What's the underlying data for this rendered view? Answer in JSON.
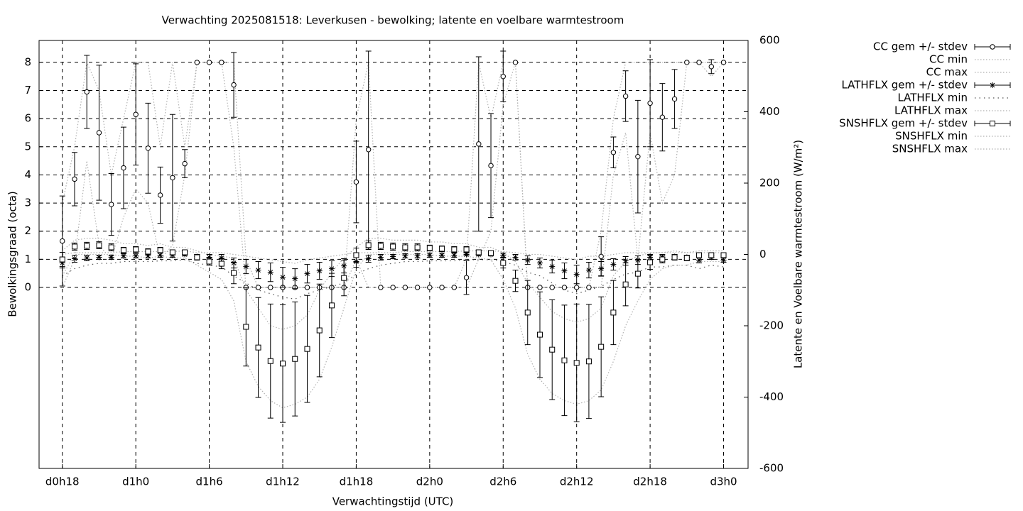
{
  "chart_data": {
    "type": "errorbar",
    "title": "Verwachting 2025081518: Leverkusen - bewolking; latente en voelbare warmtestroom",
    "xlabel": "Verwachtingstijd (UTC)",
    "ylabel": "Bewolkingsgraad (octa)",
    "y2label": "Latente en Voelbare warmtestroom (W/m²)",
    "x": [
      0,
      1,
      2,
      3,
      4,
      5,
      6,
      7,
      8,
      9,
      10,
      11,
      12,
      13,
      14,
      15,
      16,
      17,
      18,
      19,
      20,
      21,
      22,
      23,
      24,
      25,
      26,
      27,
      28,
      29,
      30,
      31,
      32,
      33,
      34,
      35,
      36,
      37,
      38,
      39,
      40,
      41,
      42,
      43,
      44,
      45,
      46,
      47,
      48,
      49,
      50,
      51,
      52,
      53,
      54
    ],
    "xlim": [
      -1.9,
      56
    ],
    "xticks": [
      {
        "value": 0,
        "label": "d0h18"
      },
      {
        "value": 6,
        "label": "d1h0"
      },
      {
        "value": 12,
        "label": "d1h6"
      },
      {
        "value": 18,
        "label": "d1h12"
      },
      {
        "value": 24,
        "label": "d1h18"
      },
      {
        "value": 30,
        "label": "d2h0"
      },
      {
        "value": 36,
        "label": "d2h6"
      },
      {
        "value": 42,
        "label": "d2h12"
      },
      {
        "value": 48,
        "label": "d2h18"
      },
      {
        "value": 54,
        "label": "d3h0"
      }
    ],
    "ylim": [
      -6.435,
      8.78
    ],
    "yticks": [
      0,
      1,
      2,
      3,
      4,
      5,
      6,
      7,
      8
    ],
    "y2lim": [
      -600,
      600
    ],
    "y2ticks": [
      -600,
      -400,
      -200,
      0,
      200,
      400,
      600
    ],
    "grid": true,
    "legend": "outside-right",
    "series": [
      {
        "name": "CC gem +/- stdev",
        "color": "#000000",
        "marker": "circle",
        "axis": "y",
        "values": [
          1.65,
          3.85,
          6.95,
          5.5,
          2.95,
          4.25,
          6.15,
          4.95,
          3.28,
          3.9,
          4.4,
          8,
          8,
          8,
          7.2,
          0,
          0,
          0,
          0,
          0,
          0,
          0,
          0,
          0,
          3.75,
          4.9,
          0,
          0,
          0,
          0,
          0,
          0,
          0,
          0.35,
          5.1,
          4.33,
          7.5,
          8,
          0,
          0,
          0,
          0,
          0,
          0,
          1.1,
          4.8,
          6.8,
          4.65,
          6.55,
          6.05,
          6.7,
          8,
          8,
          7.85,
          8
        ],
        "stdev": [
          1.6,
          0.95,
          1.3,
          2.4,
          1.1,
          1.45,
          1.8,
          1.6,
          1.0,
          2.25,
          0.5,
          0,
          0,
          0,
          1.15,
          0,
          0,
          0,
          0,
          0,
          0,
          0,
          0,
          0,
          1.45,
          3.5,
          0,
          0,
          0,
          0,
          0,
          0,
          0,
          0.6,
          3.1,
          1.85,
          0.9,
          0,
          0,
          0,
          0,
          0,
          0,
          0,
          0.7,
          0.55,
          0.9,
          2.0,
          1.55,
          1.2,
          1.05,
          0,
          0,
          0.25,
          0
        ]
      },
      {
        "name": "CC min",
        "color": "#b0b0b0",
        "axis": "y",
        "values": [
          0,
          1,
          4.5,
          1.5,
          1,
          2.5,
          3.5,
          3,
          1,
          1.5,
          4,
          8,
          8,
          8,
          5,
          0,
          0,
          0,
          0,
          0,
          0,
          0,
          0,
          0,
          1,
          0,
          0,
          0,
          0,
          0,
          0,
          0,
          0,
          0,
          1,
          2,
          6.5,
          8,
          0,
          0,
          0,
          0,
          0,
          0,
          0,
          4,
          5.5,
          1,
          5.5,
          3,
          4,
          8,
          8,
          7.5,
          8
        ]
      },
      {
        "name": "CC max",
        "color": "#b0b0b0",
        "axis": "y",
        "values": [
          3,
          5,
          8,
          7,
          4,
          6,
          8,
          8,
          5,
          8,
          5,
          8,
          8,
          8,
          8,
          1,
          0,
          0,
          0,
          0,
          0,
          0,
          0,
          0,
          6,
          8,
          0,
          0,
          0,
          0,
          0,
          0,
          0,
          1,
          8,
          6,
          8,
          8,
          0,
          0,
          0,
          0,
          0,
          0,
          2,
          6,
          8,
          8,
          8,
          8,
          8,
          8,
          8,
          8,
          8
        ]
      },
      {
        "name": "LATHFLX gem +/- stdev",
        "color": "#000000",
        "marker": "star",
        "axis": "y2",
        "values": [
          -24,
          -12,
          -10,
          -8,
          -8,
          -4,
          -4,
          -4,
          -2,
          -2,
          0,
          -6,
          -8,
          -10,
          -24,
          -34,
          -44,
          -50,
          -64,
          -68,
          -54,
          -46,
          -40,
          -32,
          -20,
          -12,
          -8,
          -6,
          -4,
          -4,
          -2,
          -2,
          -2,
          0,
          0,
          0,
          -2,
          -8,
          -16,
          -24,
          -34,
          -46,
          -56,
          -44,
          -40,
          -28,
          -18,
          -16,
          -8,
          -8,
          -6,
          -8,
          -16,
          -8,
          -16
        ],
        "stdev": [
          14,
          10,
          8,
          6,
          6,
          6,
          6,
          6,
          6,
          6,
          4,
          6,
          8,
          10,
          14,
          20,
          24,
          26,
          28,
          28,
          26,
          24,
          22,
          20,
          16,
          10,
          8,
          6,
          6,
          6,
          6,
          6,
          6,
          4,
          4,
          4,
          6,
          8,
          12,
          14,
          18,
          22,
          26,
          22,
          20,
          16,
          12,
          12,
          8,
          8,
          6,
          6,
          8,
          6,
          6
        ]
      },
      {
        "name": "LATHFLX min",
        "color": "#555555",
        "axis": "y2",
        "values": [
          -60,
          -40,
          -30,
          -25,
          -25,
          -20,
          -20,
          -20,
          -18,
          -18,
          -15,
          -25,
          -30,
          -35,
          -60,
          -80,
          -100,
          -110,
          -120,
          -125,
          -110,
          -100,
          -90,
          -80,
          -55,
          -40,
          -30,
          -25,
          -20,
          -20,
          -18,
          -18,
          -18,
          -15,
          -15,
          -15,
          -20,
          -30,
          -50,
          -60,
          -80,
          -100,
          -110,
          -100,
          -90,
          -70,
          -55,
          -50,
          -35,
          -35,
          -30,
          -30,
          -40,
          -30,
          -35
        ]
      },
      {
        "name": "LATHFLX max",
        "color": "#b0b0b0",
        "axis": "y2",
        "values": [
          0,
          5,
          5,
          5,
          5,
          8,
          8,
          8,
          8,
          8,
          10,
          5,
          5,
          5,
          0,
          -5,
          -10,
          -15,
          -20,
          -25,
          -15,
          -10,
          -5,
          0,
          5,
          5,
          5,
          5,
          8,
          8,
          8,
          8,
          8,
          10,
          10,
          10,
          8,
          5,
          0,
          0,
          -5,
          -10,
          -15,
          -5,
          -5,
          0,
          5,
          5,
          5,
          5,
          5,
          5,
          5,
          5,
          5
        ]
      },
      {
        "name": "SNSHFLX gem +/- stdev",
        "color": "#000000",
        "marker": "square",
        "axis": "y2",
        "values": [
          -14,
          22,
          24,
          26,
          20,
          12,
          14,
          8,
          12,
          6,
          6,
          -8,
          -20,
          -26,
          -52,
          -203,
          -261,
          -299,
          -306,
          -293,
          -265,
          -213,
          -143,
          -66,
          -2,
          26,
          24,
          22,
          20,
          20,
          18,
          16,
          14,
          14,
          6,
          4,
          -24,
          -74,
          -163,
          -225,
          -267,
          -297,
          -304,
          -300,
          -259,
          -163,
          -84,
          -54,
          -22,
          -14,
          -8,
          -10,
          -2,
          -2,
          -2
        ],
        "stdev": [
          20,
          10,
          10,
          10,
          10,
          8,
          8,
          8,
          8,
          6,
          6,
          8,
          10,
          14,
          30,
          110,
          140,
          160,
          165,
          160,
          150,
          130,
          90,
          50,
          20,
          12,
          10,
          10,
          10,
          10,
          8,
          8,
          8,
          8,
          6,
          6,
          14,
          30,
          90,
          120,
          140,
          155,
          165,
          160,
          140,
          90,
          60,
          40,
          20,
          10,
          8,
          8,
          6,
          6,
          6
        ]
      },
      {
        "name": "SNSHFLX min",
        "color": "#b0b0b0",
        "axis": "y2",
        "values": [
          -60,
          0,
          0,
          0,
          0,
          -5,
          -5,
          -10,
          -5,
          -10,
          -10,
          -30,
          -50,
          -70,
          -130,
          -300,
          -370,
          -410,
          -430,
          -420,
          -400,
          -350,
          -260,
          -150,
          -40,
          0,
          0,
          0,
          0,
          0,
          0,
          -5,
          -5,
          -5,
          -10,
          -15,
          -70,
          -150,
          -280,
          -350,
          -390,
          -410,
          -420,
          -410,
          -380,
          -300,
          -200,
          -130,
          -70,
          -40,
          -30,
          -30,
          -20,
          -20,
          -20
        ]
      },
      {
        "name": "SNSHFLX max",
        "color": "#b0b0b0",
        "axis": "y2",
        "values": [
          10,
          40,
          45,
          45,
          40,
          30,
          30,
          25,
          30,
          20,
          20,
          10,
          0,
          -5,
          -10,
          -100,
          -150,
          -200,
          -210,
          -200,
          -170,
          -100,
          -50,
          -10,
          20,
          45,
          45,
          40,
          40,
          40,
          35,
          35,
          30,
          30,
          20,
          20,
          5,
          -20,
          -80,
          -120,
          -160,
          -180,
          -190,
          -180,
          -150,
          -60,
          -20,
          -5,
          5,
          5,
          10,
          5,
          10,
          10,
          10
        ]
      }
    ]
  }
}
